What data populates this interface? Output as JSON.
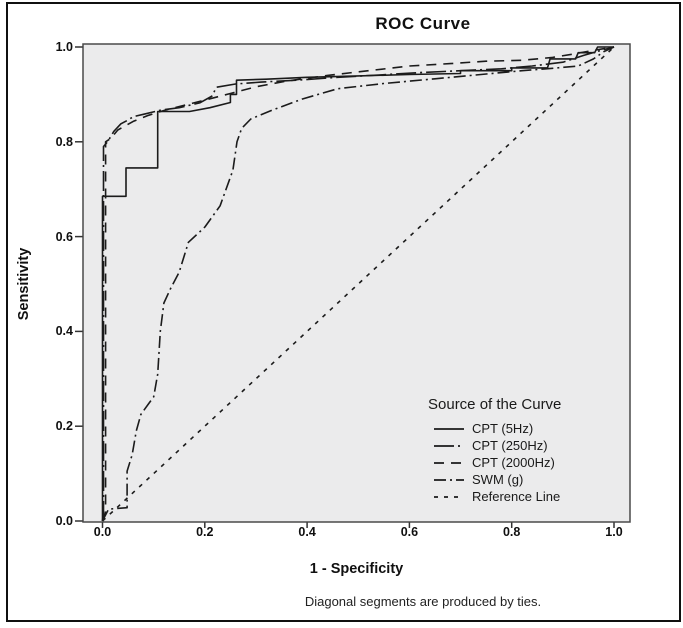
{
  "title": "ROC Curve",
  "axes": {
    "y": {
      "label": "Sensitivity",
      "tick_labels": [
        "1.0",
        "0.8",
        "0.6",
        "0.4",
        "0.2",
        "0.0"
      ]
    },
    "x": {
      "label": "1 - Specificity",
      "tick_labels": [
        "0.0",
        "0.2",
        "0.4",
        "0.6",
        "0.8",
        "1.0"
      ]
    }
  },
  "legend": {
    "title": "Source of the Curve",
    "entries": [
      {
        "label": "CPT (5Hz)",
        "dash": ""
      },
      {
        "label": "CPT (250Hz)",
        "dash": "20 4 2 4"
      },
      {
        "label": "CPT (2000Hz)",
        "dash": "10 7"
      },
      {
        "label": "SWM (g)",
        "dash": "12 4 2 4"
      },
      {
        "label": "Reference Line",
        "dash": "4 6"
      }
    ]
  },
  "caption": "Diagonal segments are produced by ties.",
  "colors": {
    "curve": "#1b1b1b",
    "plot_bg": "#ebebec",
    "plot_frame": "#4a4a4a",
    "outer_border": "#101010",
    "text": "#111111"
  },
  "chart_data": {
    "type": "line",
    "title": "ROC Curve",
    "xlabel": "1 - Specificity",
    "ylabel": "Sensitivity",
    "xlim": [
      0,
      1
    ],
    "ylim": [
      0,
      1
    ],
    "xticks": [
      0,
      0.2,
      0.4,
      0.6,
      0.8,
      1
    ],
    "yticks": [
      0,
      0.2,
      0.4,
      0.6,
      0.8,
      1
    ],
    "grid": false,
    "legend_position": "inside lower right",
    "series": [
      {
        "id": "cpt-5hz",
        "name": "CPT (5Hz)",
        "style": "solid",
        "dash": "",
        "points": [
          [
            0,
            0
          ],
          [
            0,
            0.685
          ],
          [
            0.046,
            0.685
          ],
          [
            0.046,
            0.745
          ],
          [
            0.108,
            0.745
          ],
          [
            0.108,
            0.864
          ],
          [
            0.17,
            0.864
          ],
          [
            0.21,
            0.872
          ],
          [
            0.25,
            0.883
          ],
          [
            0.25,
            0.9
          ],
          [
            0.262,
            0.9
          ],
          [
            0.262,
            0.93
          ],
          [
            0.32,
            0.932
          ],
          [
            0.4,
            0.936
          ],
          [
            0.5,
            0.939
          ],
          [
            0.6,
            0.942
          ],
          [
            0.7,
            0.944
          ],
          [
            0.7,
            0.95
          ],
          [
            0.8,
            0.95
          ],
          [
            0.8,
            0.956
          ],
          [
            0.87,
            0.956
          ],
          [
            0.875,
            0.975
          ],
          [
            0.925,
            0.975
          ],
          [
            0.93,
            0.988
          ],
          [
            0.962,
            0.988
          ],
          [
            0.968,
            1
          ],
          [
            1,
            1
          ]
        ]
      },
      {
        "id": "cpt-250hz",
        "name": "CPT (250Hz)",
        "style": "long-dash-dot",
        "dash": "20 4 2 4",
        "points": [
          [
            0,
            0
          ],
          [
            0.002,
            0.02
          ],
          [
            0.002,
            0.79
          ],
          [
            0.01,
            0.8
          ],
          [
            0.022,
            0.822
          ],
          [
            0.036,
            0.838
          ],
          [
            0.05,
            0.846
          ],
          [
            0.06,
            0.853
          ],
          [
            0.08,
            0.858
          ],
          [
            0.115,
            0.867
          ],
          [
            0.15,
            0.872
          ],
          [
            0.19,
            0.882
          ],
          [
            0.215,
            0.897
          ],
          [
            0.222,
            0.915
          ],
          [
            0.26,
            0.922
          ],
          [
            0.31,
            0.926
          ],
          [
            0.38,
            0.93
          ],
          [
            0.46,
            0.936
          ],
          [
            0.54,
            0.941
          ],
          [
            0.62,
            0.946
          ],
          [
            0.7,
            0.95
          ],
          [
            0.78,
            0.954
          ],
          [
            0.84,
            0.96
          ],
          [
            0.9,
            0.968
          ],
          [
            0.94,
            0.982
          ],
          [
            0.975,
            0.993
          ],
          [
            1,
            1
          ]
        ]
      },
      {
        "id": "cpt-2000hz",
        "name": "CPT (2000Hz)",
        "style": "dashed",
        "dash": "10 7",
        "points": [
          [
            0,
            0
          ],
          [
            0.006,
            0.02
          ],
          [
            0.006,
            0.8
          ],
          [
            0.016,
            0.807
          ],
          [
            0.03,
            0.825
          ],
          [
            0.06,
            0.843
          ],
          [
            0.09,
            0.856
          ],
          [
            0.12,
            0.866
          ],
          [
            0.16,
            0.877
          ],
          [
            0.2,
            0.888
          ],
          [
            0.25,
            0.902
          ],
          [
            0.3,
            0.916
          ],
          [
            0.36,
            0.928
          ],
          [
            0.44,
            0.94
          ],
          [
            0.52,
            0.95
          ],
          [
            0.6,
            0.96
          ],
          [
            0.68,
            0.965
          ],
          [
            0.75,
            0.97
          ],
          [
            0.82,
            0.972
          ],
          [
            0.88,
            0.978
          ],
          [
            0.92,
            0.985
          ],
          [
            0.96,
            0.993
          ],
          [
            1,
            1
          ]
        ]
      },
      {
        "id": "swm-g",
        "name": "SWM (g)",
        "style": "dash-dot",
        "dash": "12 4 2 4",
        "points": [
          [
            0,
            0
          ],
          [
            0.012,
            0.025
          ],
          [
            0.048,
            0.028
          ],
          [
            0.048,
            0.105
          ],
          [
            0.058,
            0.14
          ],
          [
            0.066,
            0.19
          ],
          [
            0.075,
            0.225
          ],
          [
            0.09,
            0.247
          ],
          [
            0.1,
            0.262
          ],
          [
            0.108,
            0.31
          ],
          [
            0.113,
            0.4
          ],
          [
            0.12,
            0.46
          ],
          [
            0.133,
            0.49
          ],
          [
            0.15,
            0.525
          ],
          [
            0.168,
            0.588
          ],
          [
            0.2,
            0.62
          ],
          [
            0.23,
            0.665
          ],
          [
            0.255,
            0.74
          ],
          [
            0.263,
            0.8
          ],
          [
            0.272,
            0.828
          ],
          [
            0.29,
            0.848
          ],
          [
            0.33,
            0.866
          ],
          [
            0.39,
            0.89
          ],
          [
            0.46,
            0.912
          ],
          [
            0.55,
            0.923
          ],
          [
            0.65,
            0.933
          ],
          [
            0.74,
            0.942
          ],
          [
            0.82,
            0.95
          ],
          [
            0.88,
            0.955
          ],
          [
            0.93,
            0.96
          ],
          [
            0.96,
            0.975
          ],
          [
            0.98,
            0.99
          ],
          [
            1,
            1
          ]
        ]
      },
      {
        "id": "reference-line",
        "name": "Reference Line",
        "style": "dotted",
        "dash": "4 6",
        "points": [
          [
            0,
            0
          ],
          [
            1,
            1
          ]
        ]
      }
    ]
  }
}
